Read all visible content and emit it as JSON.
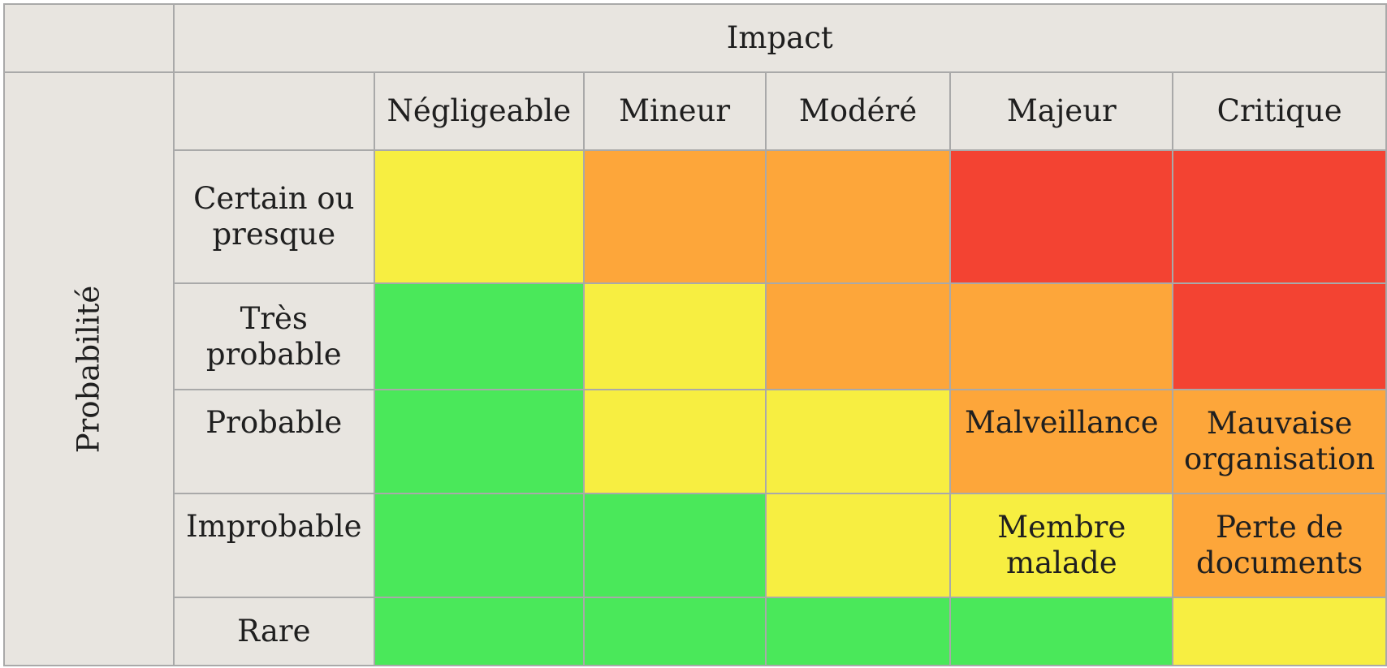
{
  "colors": {
    "header_bg": "#e8e5e0",
    "border": "#a9a9a9",
    "green": "#4ae85a",
    "yellow": "#f7ee41",
    "orange": "#fda63a",
    "red": "#f34332"
  },
  "axes": {
    "impact_label": "Impact",
    "probability_label": "Probabilité"
  },
  "impact_levels": [
    "Négligeable",
    "Mineur",
    "Modéré",
    "Majeur",
    "Critique"
  ],
  "rows": [
    {
      "label_line1": "Certain ou",
      "label_line2": "presque",
      "cells": [
        {
          "level": "yellow",
          "line1": "",
          "line2": ""
        },
        {
          "level": "orange",
          "line1": "",
          "line2": ""
        },
        {
          "level": "orange",
          "line1": "",
          "line2": ""
        },
        {
          "level": "red",
          "line1": "",
          "line2": ""
        },
        {
          "level": "red",
          "line1": "",
          "line2": ""
        }
      ]
    },
    {
      "label_line1": "Très",
      "label_line2": "probable",
      "cells": [
        {
          "level": "green",
          "line1": "",
          "line2": ""
        },
        {
          "level": "yellow",
          "line1": "",
          "line2": ""
        },
        {
          "level": "orange",
          "line1": "",
          "line2": ""
        },
        {
          "level": "orange",
          "line1": "",
          "line2": ""
        },
        {
          "level": "red",
          "line1": "",
          "line2": ""
        }
      ]
    },
    {
      "label_line1": "Probable",
      "label_line2": "",
      "cells": [
        {
          "level": "green",
          "line1": "",
          "line2": ""
        },
        {
          "level": "yellow",
          "line1": "",
          "line2": ""
        },
        {
          "level": "yellow",
          "line1": "",
          "line2": ""
        },
        {
          "level": "orange",
          "line1": "Malveillance",
          "line2": ""
        },
        {
          "level": "orange",
          "line1": "Mauvaise",
          "line2": "organisation"
        }
      ]
    },
    {
      "label_line1": "Improbable",
      "label_line2": "",
      "cells": [
        {
          "level": "green",
          "line1": "",
          "line2": ""
        },
        {
          "level": "green",
          "line1": "",
          "line2": ""
        },
        {
          "level": "yellow",
          "line1": "",
          "line2": ""
        },
        {
          "level": "yellow",
          "line1": "Membre",
          "line2": "malade"
        },
        {
          "level": "orange",
          "line1": "Perte de",
          "line2": "documents"
        }
      ]
    },
    {
      "label_line1": "Rare",
      "label_line2": "",
      "cells": [
        {
          "level": "green",
          "line1": "",
          "line2": ""
        },
        {
          "level": "green",
          "line1": "",
          "line2": ""
        },
        {
          "level": "green",
          "line1": "",
          "line2": ""
        },
        {
          "level": "green",
          "line1": "",
          "line2": ""
        },
        {
          "level": "yellow",
          "line1": "",
          "line2": ""
        }
      ]
    }
  ]
}
